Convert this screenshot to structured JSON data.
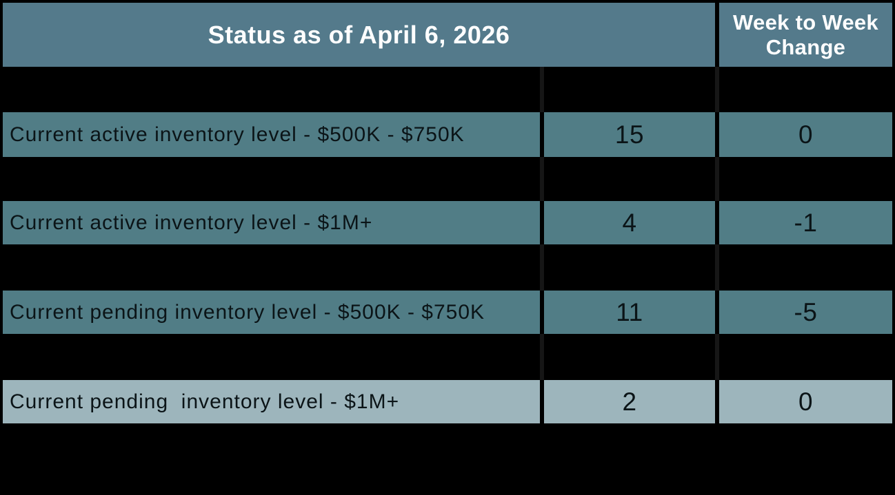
{
  "table": {
    "header": {
      "status_label": "Status as of April 6, 2026",
      "change_label": "Week to Week Change"
    },
    "rows": [
      {
        "label": "Current active inventory level - $500K - $750K",
        "value": "15",
        "change": "0"
      },
      {
        "label": "Current active inventory level - $1M+",
        "value": "4",
        "change": "-1"
      },
      {
        "label": "Current pending inventory level - $500K - $750K",
        "value": "11",
        "change": "-5"
      },
      {
        "label": "Current pending  inventory level - $1M+",
        "value": "2",
        "change": "0"
      }
    ],
    "colors": {
      "header_bg": "#547a8b",
      "row_bg": "#517d86",
      "highlight_row_bg": "#9db5bc",
      "grid_bg": "#000000",
      "faint_gridline": "#161616",
      "header_text": "#ffffff",
      "row_text": "#0b1417"
    }
  },
  "chart_data": {
    "type": "table",
    "title": "Status as of April 6, 2026",
    "column_headers": [
      "Status as of April 6, 2026",
      "",
      "Week to Week Change"
    ],
    "rows": [
      {
        "label": "Current active inventory level - $500K - $750K",
        "value": 15,
        "week_to_week_change": 0
      },
      {
        "label": "Current active inventory level - $1M+",
        "value": 4,
        "week_to_week_change": -1
      },
      {
        "label": "Current pending inventory level - $500K - $750K",
        "value": 11,
        "week_to_week_change": -5
      },
      {
        "label": "Current pending  inventory level - $1M+",
        "value": 2,
        "week_to_week_change": 0
      }
    ]
  }
}
